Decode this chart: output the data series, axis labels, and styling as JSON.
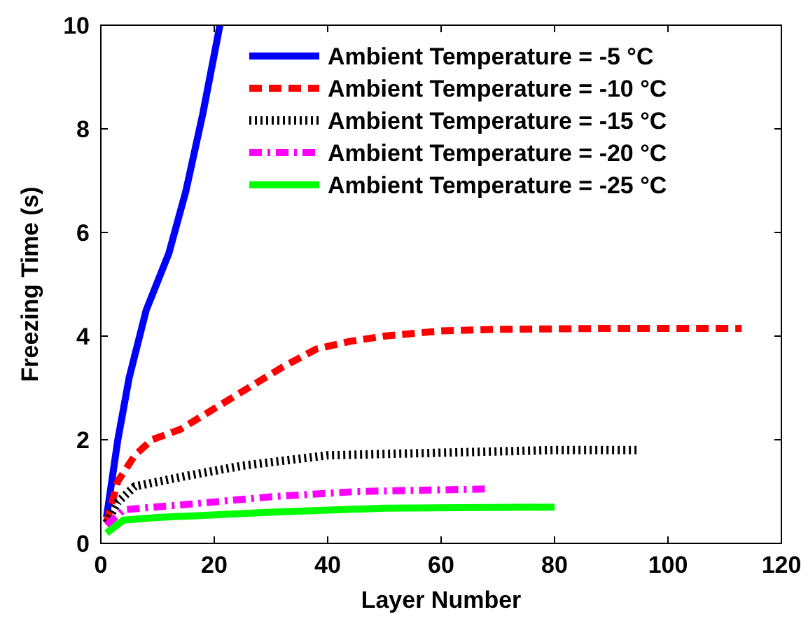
{
  "chart_data": {
    "type": "line",
    "xlabel": "Layer Number",
    "ylabel": "Freezing Time (s)",
    "xlim": [
      0,
      120
    ],
    "ylim": [
      0,
      10
    ],
    "xticks": [
      0,
      20,
      40,
      60,
      80,
      100,
      120
    ],
    "yticks": [
      0,
      2,
      4,
      6,
      8,
      10
    ],
    "grid": false,
    "legend": "top right",
    "series": [
      {
        "name": "Ambient Temperature = -5 °C",
        "color": "#0000ff",
        "line_style": "solid",
        "x": [
          1,
          3,
          5,
          8,
          12,
          15,
          18,
          21
        ],
        "values": [
          0.5,
          2,
          3.2,
          4.5,
          5.6,
          6.8,
          8.3,
          10
        ]
      },
      {
        "name": "Ambient Temperature = -10 °C",
        "color": "#ff0000",
        "line_style": "dashed",
        "x": [
          1,
          3,
          6,
          9,
          14,
          20,
          26,
          32,
          38,
          44,
          50,
          60,
          70,
          90,
          113
        ],
        "values": [
          0.4,
          1.2,
          1.7,
          2,
          2.2,
          2.6,
          3,
          3.4,
          3.75,
          3.9,
          4,
          4.1,
          4.13,
          4.15,
          4.15
        ]
      },
      {
        "name": "Ambient Temperature = -15 °C",
        "color": "#000000",
        "line_style": "dotted",
        "x": [
          1,
          3,
          6,
          15,
          25,
          40,
          60,
          80,
          95
        ],
        "values": [
          0.4,
          0.8,
          1.1,
          1.3,
          1.5,
          1.7,
          1.75,
          1.8,
          1.8
        ]
      },
      {
        "name": "Ambient Temperature = -20 °C",
        "color": "#ff00ff",
        "line_style": "dashdot",
        "x": [
          1,
          4,
          15,
          30,
          45,
          68
        ],
        "values": [
          0.35,
          0.65,
          0.75,
          0.9,
          1,
          1.05
        ]
      },
      {
        "name": "Ambient Temperature = -25 °C",
        "color": "#00ff00",
        "line_style": "solid",
        "x": [
          1,
          4,
          10,
          30,
          50,
          80
        ],
        "values": [
          0.2,
          0.45,
          0.5,
          0.6,
          0.68,
          0.7
        ]
      }
    ]
  }
}
